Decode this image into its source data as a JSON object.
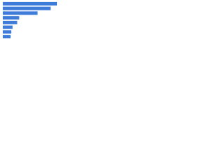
{
  "chart_data": {
    "type": "bar",
    "orientation": "horizontal",
    "categories": [
      null,
      null,
      null,
      null,
      null,
      null,
      null,
      null
    ],
    "values": [
      83,
      73,
      53,
      25,
      22,
      15,
      13,
      12
    ],
    "color": "#3f7bd8",
    "xlim": [
      0,
      100
    ]
  }
}
